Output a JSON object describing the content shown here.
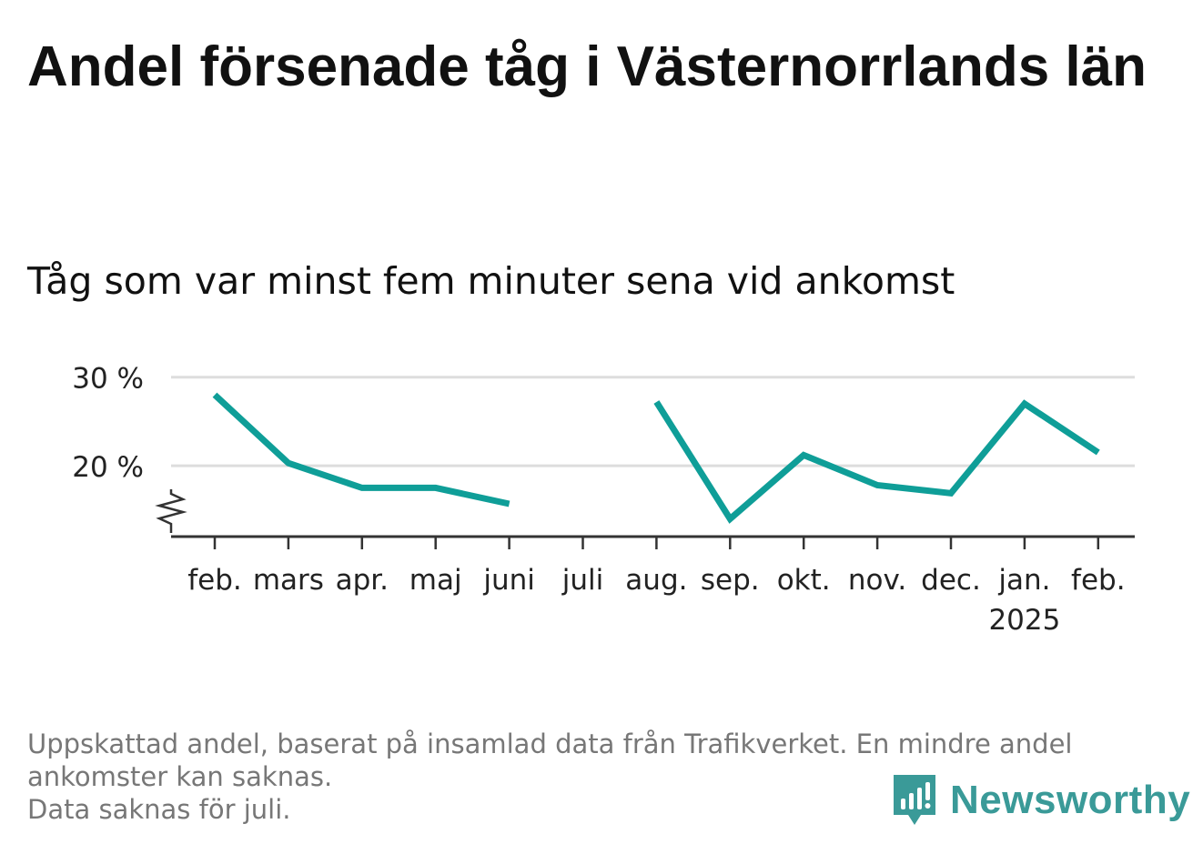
{
  "title": "Andel försenade tåg i Västernorrlands län",
  "subtitle": "Tåg som var minst fem minuter sena vid ankomst",
  "footnote": {
    "line1": "Uppskattad andel, baserat på insamlad data från Trafikverket. En mindre andel ankomster kan saknas.",
    "line2": "Data saknas för juli."
  },
  "logo": {
    "name": "Newsworthy",
    "color": "#3a9a98"
  },
  "colors": {
    "line": "#0f9e98",
    "grid": "#dddddd",
    "axis": "#333333",
    "text": "#222222"
  },
  "chart_data": {
    "type": "line",
    "x": [
      "feb.",
      "mars",
      "apr.",
      "maj",
      "juni",
      "juli",
      "aug.",
      "sep.",
      "okt.",
      "nov.",
      "dec.",
      "jan.",
      "feb."
    ],
    "x_sublabels": [
      "",
      "",
      "",
      "",
      "",
      "",
      "",
      "",
      "",
      "",
      "",
      "2025",
      ""
    ],
    "values": [
      28.0,
      20.3,
      17.5,
      17.5,
      15.7,
      null,
      27.2,
      14.0,
      21.2,
      17.8,
      16.9,
      27.0,
      21.5
    ],
    "yticks": [
      20,
      30
    ],
    "ytick_labels": [
      "20 %",
      "30 %"
    ],
    "ylim": [
      12,
      31
    ],
    "axis_break": true,
    "grid": true
  }
}
